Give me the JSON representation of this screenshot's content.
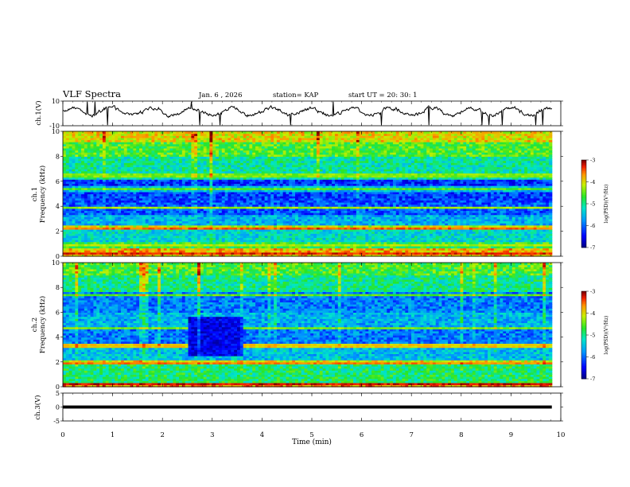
{
  "header": {
    "title": "VLF Spectra",
    "date": "Jan. 6 , 2026",
    "station": "station= KAP",
    "start_time": "start UT = 20: 30: 1"
  },
  "chart_data": [
    {
      "id": "ch1-waveform",
      "type": "line",
      "ylabel": "ch.1(V)",
      "ylim": [
        -10,
        10
      ],
      "yticks": [
        10,
        -10
      ],
      "xlim": [
        0,
        10
      ],
      "x_start": 0,
      "x_end": 9.82,
      "typical_range": [
        -4,
        7
      ],
      "seed": 17
    },
    {
      "id": "ch1-spectrogram",
      "type": "heatmap",
      "ylabel_channel": "ch.1",
      "ylabel": "Frequency (kHz)",
      "ylim": [
        0,
        10
      ],
      "yticks": [
        0,
        2,
        4,
        6,
        8,
        10
      ],
      "xlim": [
        0,
        10
      ],
      "x_end": 9.82,
      "colorbar": {
        "label": "log(PSD)(V²/Hz)",
        "range": [
          -7,
          -3
        ],
        "ticks": [
          -3,
          -4,
          -5,
          -6,
          -7
        ]
      },
      "bands": [
        {
          "lo": 0,
          "hi": 0.6,
          "level": -3.8
        },
        {
          "lo": 0.6,
          "hi": 1.2,
          "level": -4.7
        },
        {
          "lo": 1.2,
          "hi": 2.2,
          "level": -5.3
        },
        {
          "lo": 2.2,
          "hi": 2.5,
          "level": -4.1
        },
        {
          "lo": 2.5,
          "hi": 3.4,
          "level": -5.6
        },
        {
          "lo": 3.4,
          "hi": 4.4,
          "level": -6.1
        },
        {
          "lo": 4.4,
          "hi": 5.2,
          "level": -6.2
        },
        {
          "lo": 5.2,
          "hi": 5.6,
          "level": -5.5
        },
        {
          "lo": 5.6,
          "hi": 6.2,
          "level": -6.3
        },
        {
          "lo": 6.2,
          "hi": 8.0,
          "level": -5.1
        },
        {
          "lo": 8.0,
          "hi": 9.2,
          "level": -4.6
        },
        {
          "lo": 9.2,
          "hi": 10,
          "level": -4.0
        }
      ],
      "lines": [
        {
          "f": 0.3,
          "level": -3.3
        },
        {
          "f": 0.9,
          "level": -4.2
        },
        {
          "f": 2.3,
          "level": -3.5
        },
        {
          "f": 3.9,
          "level": -4.3
        },
        {
          "f": 5.4,
          "level": -4.5
        },
        {
          "f": 6.5,
          "level": -4.4
        }
      ],
      "burst_rate": 0.08,
      "seed": 101
    },
    {
      "id": "ch2-spectrogram",
      "type": "heatmap",
      "ylabel_channel": "ch.2",
      "ylabel": "Frequency (kHz)",
      "ylim": [
        0,
        10
      ],
      "yticks": [
        0,
        2,
        4,
        6,
        8,
        10
      ],
      "xlim": [
        0,
        10
      ],
      "x_end": 9.82,
      "colorbar": {
        "label": "log(PSD)(V²/Hz)",
        "range": [
          -7,
          -3
        ],
        "ticks": [
          -3,
          -4,
          -5,
          -6,
          -7
        ]
      },
      "bands": [
        {
          "lo": 0,
          "hi": 0.4,
          "level": -3.6
        },
        {
          "lo": 0.4,
          "hi": 1.8,
          "level": -4.9
        },
        {
          "lo": 1.8,
          "hi": 2.1,
          "level": -4.0
        },
        {
          "lo": 2.1,
          "hi": 3.2,
          "level": -5.5
        },
        {
          "lo": 3.2,
          "hi": 3.5,
          "level": -4.4
        },
        {
          "lo": 3.5,
          "hi": 4.8,
          "level": -5.9
        },
        {
          "lo": 4.8,
          "hi": 6.0,
          "level": -5.6
        },
        {
          "lo": 6.0,
          "hi": 7.6,
          "level": -5.9
        },
        {
          "lo": 7.6,
          "hi": 9.0,
          "level": -5.0
        },
        {
          "lo": 9.0,
          "hi": 10,
          "level": -4.6
        }
      ],
      "lines": [
        {
          "f": 0.2,
          "level": -3.2
        },
        {
          "f": 1.95,
          "level": -3.6
        },
        {
          "f": 3.35,
          "level": -3.9
        },
        {
          "f": 4.7,
          "level": -4.4
        },
        {
          "f": 7.4,
          "level": -4.5
        }
      ],
      "patch": {
        "x0": 2.5,
        "x1": 3.6,
        "f0": 2.5,
        "f1": 5.7,
        "level": -6.6
      },
      "burst_rate": 0.05,
      "seed": 202
    },
    {
      "id": "ch3-waveform",
      "type": "line",
      "ylabel": "ch.3(V)",
      "ylim": [
        -5,
        5
      ],
      "yticks": [
        5,
        0,
        -5
      ],
      "xlim": [
        0,
        10
      ],
      "x_start": 0,
      "x_end": 9.82,
      "typical_range": [
        -0.7,
        0.7
      ],
      "seed": 33
    }
  ],
  "xaxis": {
    "label": "Time (min)",
    "ticks": [
      0,
      1,
      2,
      3,
      4,
      5,
      6,
      7,
      8,
      9,
      10
    ]
  }
}
